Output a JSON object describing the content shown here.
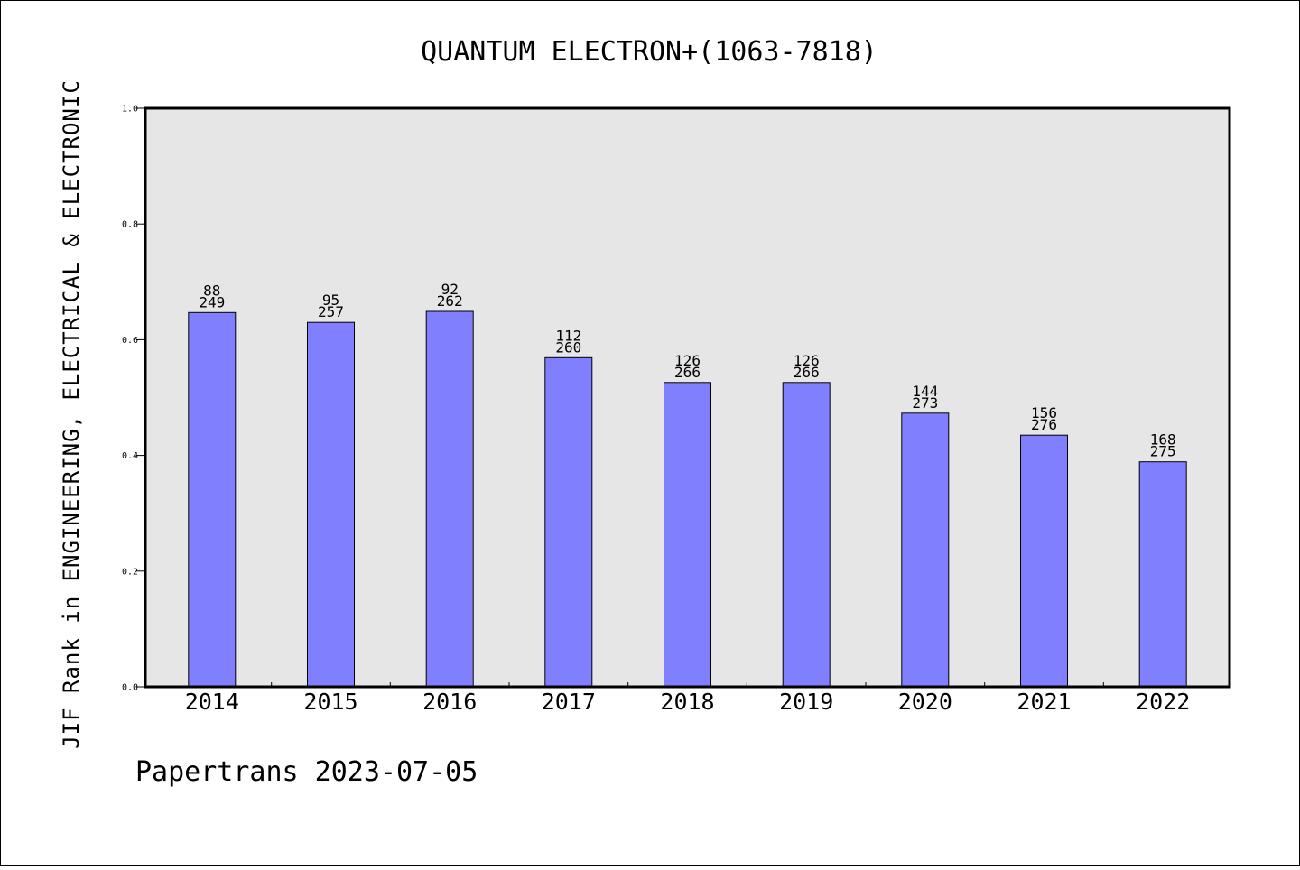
{
  "chart_data": {
    "type": "bar",
    "title": "QUANTUM ELECTRON+(1063-7818)",
    "xlabel": "",
    "ylabel": "JIF Rank in ENGINEERING, ELECTRICAL & ELECTRONIC",
    "ylim": [
      0,
      1.0
    ],
    "yticks": [
      "0.0",
      "0.2",
      "0.4",
      "0.6",
      "0.8",
      "1.0"
    ],
    "grid": false,
    "categories": [
      "2014",
      "2015",
      "2016",
      "2017",
      "2018",
      "2019",
      "2020",
      "2021",
      "2022"
    ],
    "values": [
      0.647,
      0.63,
      0.649,
      0.569,
      0.526,
      0.526,
      0.473,
      0.435,
      0.389
    ],
    "ranks": [
      "88",
      "95",
      "92",
      "112",
      "126",
      "126",
      "144",
      "156",
      "168"
    ],
    "totals": [
      "249",
      "257",
      "262",
      "260",
      "266",
      "266",
      "273",
      "276",
      "275"
    ],
    "bar_color": "#8080ff",
    "plot_background": "#e6e6e6"
  },
  "footer": "Papertrans 2023-07-05"
}
